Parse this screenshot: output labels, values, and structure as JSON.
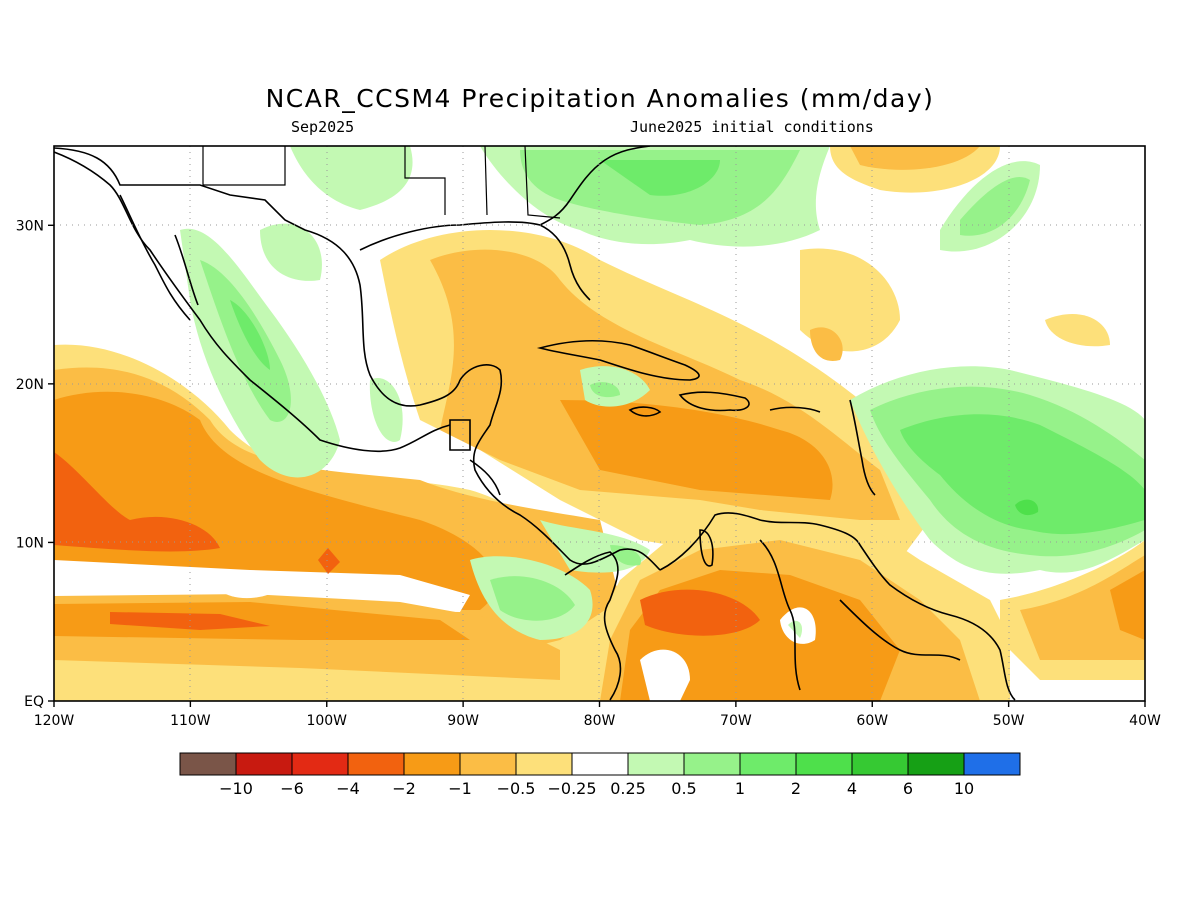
{
  "title": "NCAR_CCSM4 Precipitation Anomalies (mm/day)",
  "subtitle_left": "Sep2025",
  "subtitle_right": "June2025 initial conditions",
  "x_ticks": [
    "120W",
    "110W",
    "100W",
    "90W",
    "80W",
    "70W",
    "60W",
    "50W",
    "40W"
  ],
  "y_ticks": [
    "EQ",
    "10N",
    "20N",
    "30N"
  ],
  "colorbar": {
    "colors": [
      "#7a5548",
      "#c81a10",
      "#e32a14",
      "#f2620f",
      "#f79b16",
      "#fbbd45",
      "#fde07a",
      "#ffffff",
      "#c3f9b3",
      "#96f28a",
      "#6eeb6a",
      "#4ee04b",
      "#36c933",
      "#16a015",
      "#1f6fe8"
    ],
    "labels": [
      "-10",
      "-6",
      "-4",
      "-2",
      "-1",
      "-0.5",
      "-0.25",
      "0.25",
      "0.5",
      "1",
      "2",
      "4",
      "6",
      "10"
    ]
  },
  "chart_data": {
    "type": "heatmap",
    "variable": "Precipitation Anomalies",
    "units": "mm/day",
    "x_range": [
      -120,
      -40
    ],
    "y_range": [
      0,
      35
    ],
    "grid": true,
    "levels": [
      -10,
      -6,
      -4,
      -2,
      -1,
      -0.5,
      -0.25,
      0.25,
      0.5,
      1,
      2,
      4,
      6,
      10
    ]
  }
}
